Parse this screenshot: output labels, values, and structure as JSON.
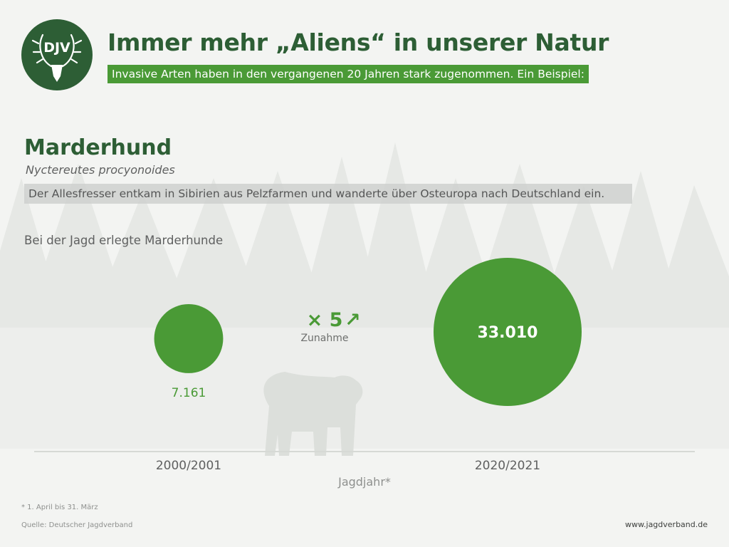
{
  "logo": {
    "text": "DJV"
  },
  "header": {
    "title": "Immer mehr „Aliens“ in unserer Natur",
    "subtitle": "Invasive Arten haben in den vergangenen 20 Jahren stark zugenommen. Ein Beispiel:"
  },
  "species": {
    "name": "Marderhund",
    "latin": "Nyctereutes procyonoides",
    "description": "Der Allesfresser entkam in Sibirien aus Pelzfarmen und wanderte über Osteuropa nach Deutschland ein."
  },
  "chart_caption": "Bei der Jagd erlegte Marderhunde",
  "chart_data": {
    "type": "bubble",
    "title": "Bei der Jagd erlegte Marderhunde",
    "xlabel": "Jagdjahr*",
    "categories": [
      "2000/2001",
      "2020/2021"
    ],
    "values": [
      7161,
      33010
    ],
    "value_labels": [
      "7.161",
      "33.010"
    ],
    "annotation": {
      "multiplier": "× 5",
      "arrow": "↗",
      "label": "Zunahme"
    },
    "colors": {
      "bubble": "#4a9a36",
      "text_light": "#ffffff",
      "text_dark": "#4a9a36"
    }
  },
  "footer": {
    "footnote": "* 1. April bis 31. März",
    "source": "Quelle: Deutscher Jagdverband",
    "website": "www.jagdverband.de"
  },
  "colors": {
    "dark_green": "#2d5e35",
    "accent_green": "#4a9a36",
    "background": "#f3f4f2"
  }
}
